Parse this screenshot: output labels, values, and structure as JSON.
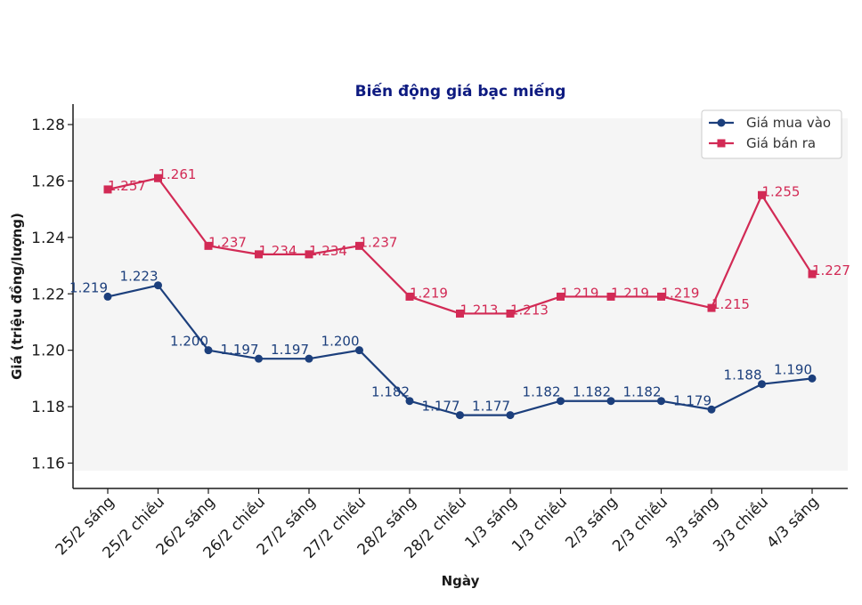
{
  "chart_data": {
    "type": "line",
    "title": "Biến động giá bạc miếng",
    "xlabel": "Ngày",
    "ylabel": "Giá (triệu đồng/lượng)",
    "categories": [
      "25/2 sáng",
      "25/2 chiều",
      "26/2 sáng",
      "26/2 chiều",
      "27/2 sáng",
      "27/2 chiều",
      "28/2 sáng",
      "28/2 chiều",
      "1/3 sáng",
      "1/3 chiều",
      "2/3 sáng",
      "2/3 chiều",
      "3/3 sáng",
      "3/3 chiều",
      "4/3 sáng"
    ],
    "ylim": [
      1.15,
      1.285
    ],
    "yticks": [
      1.16,
      1.18,
      1.2,
      1.22,
      1.24,
      1.26,
      1.28
    ],
    "ytick_labels": [
      "1.16",
      "1.18",
      "1.20",
      "1.22",
      "1.24",
      "1.26",
      "1.28"
    ],
    "grid": false,
    "legend_position": "top-right",
    "series": [
      {
        "name": "Giá mua vào",
        "marker": "circle",
        "color": "#1c3f7c",
        "values": [
          1.219,
          1.223,
          1.2,
          1.197,
          1.197,
          1.2,
          1.182,
          1.177,
          1.177,
          1.182,
          1.182,
          1.182,
          1.179,
          1.188,
          1.19
        ],
        "labels": [
          "1.219",
          "1.223",
          "1.200",
          "1.197",
          "1.197",
          "1.200",
          "1.182",
          "1.177",
          "1.177",
          "1.182",
          "1.182",
          "1.182",
          "1.179",
          "1.188",
          "1.190"
        ]
      },
      {
        "name": "Giá bán ra",
        "marker": "square",
        "color": "#d22a55",
        "values": [
          1.257,
          1.261,
          1.237,
          1.234,
          1.234,
          1.237,
          1.219,
          1.213,
          1.213,
          1.219,
          1.219,
          1.219,
          1.215,
          1.255,
          1.227
        ],
        "labels": [
          "1.257",
          "1.261",
          "1.237",
          "1.234",
          "1.234",
          "1.237",
          "1.219",
          "1.213",
          "1.213",
          "1.219",
          "1.219",
          "1.219",
          "1.215",
          "1.255",
          "1.227"
        ]
      }
    ],
    "colors": {
      "plot_background": "#f5f5f5",
      "title": "#0d1a80"
    }
  }
}
